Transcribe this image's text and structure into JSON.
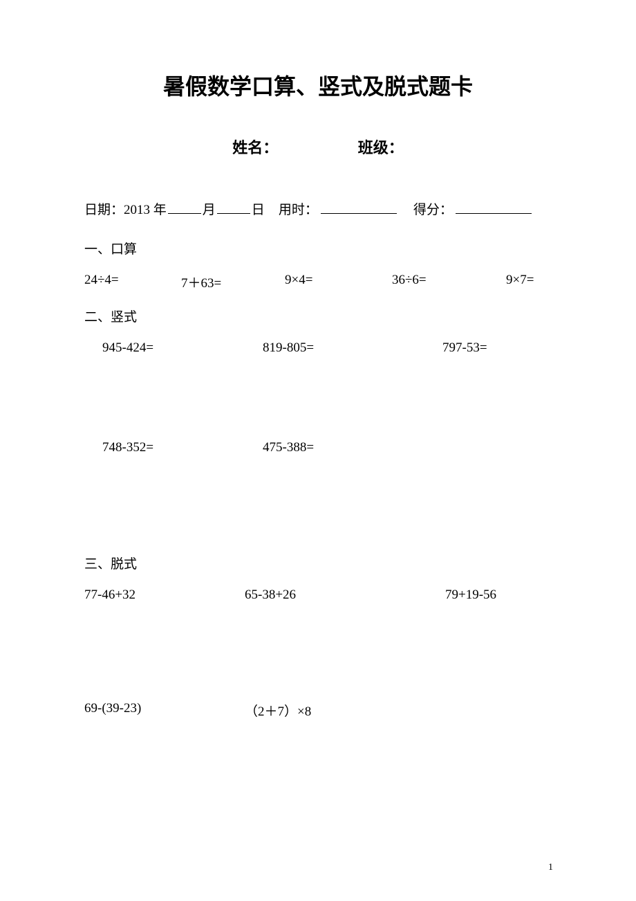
{
  "title": "暑假数学口算、竖式及脱式题卡",
  "name_label": "姓名：",
  "class_label": "班级：",
  "date_prefix": "日期：",
  "date_year": "2013 年",
  "date_month_suffix": "月",
  "date_day_suffix": "日",
  "time_label": "用时：",
  "score_label": "得分：",
  "section1_header": "一、口算",
  "section1_problems": [
    "24÷4=",
    "7＋63=",
    "9×4=",
    "36÷6=",
    "9×7="
  ],
  "section2_header": "二、竖式",
  "section2_row1": [
    "945-424=",
    "819-805=",
    "797-53="
  ],
  "section2_row2": [
    "748-352=",
    "475-388="
  ],
  "section3_header": "三、脱式",
  "section3_row1": [
    "77-46+32",
    "65-38+26",
    "79+19-56"
  ],
  "section3_row2": [
    "69-(39-23)",
    "（2＋7）×8"
  ],
  "page_number": "1"
}
